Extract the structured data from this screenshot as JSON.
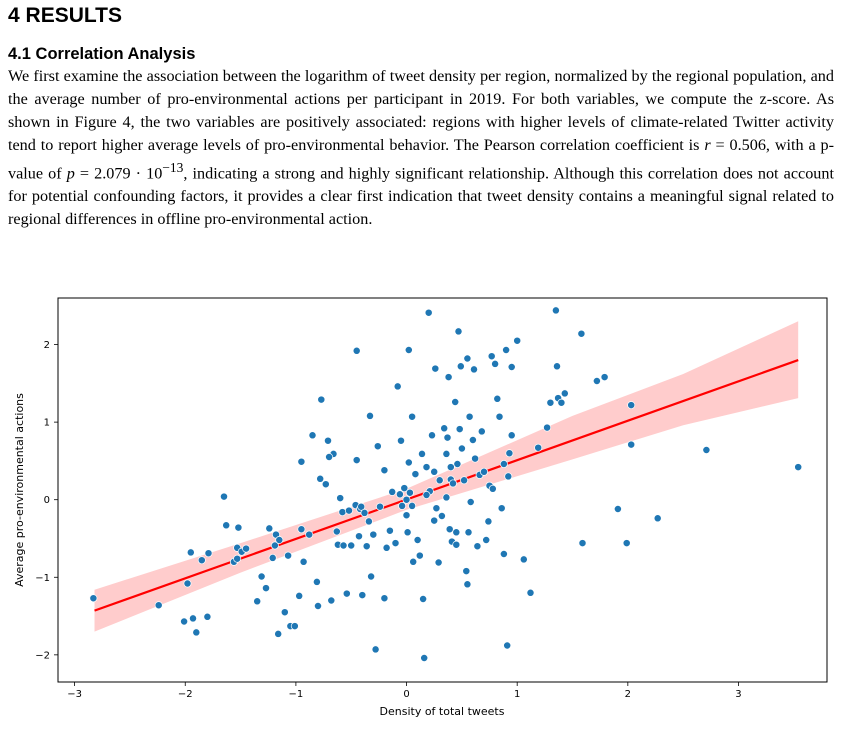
{
  "section": {
    "number": "4",
    "title": "RESULTS"
  },
  "subsection": {
    "number": "4.1",
    "title": "Correlation Analysis"
  },
  "paragraph": {
    "s1": "We first examine the association between the logarithm of tweet density per region, normalized by the regional population, and the average number of pro-environmental actions per participant in 2019. For both variables, we compute the z-score. As shown in Figure 4, the two variables are positively associated: regions with higher levels of climate-related Twitter activity tend to report higher average levels of pro-environmental behavior. The Pearson correlation coefficient is ",
    "r_symbol": "r",
    "r_eq": " = 0.506, with a p-value of ",
    "p_symbol": "p",
    "p_eq": " = 2.079 · 10",
    "p_exp": "−13",
    "s2": ", indicating a strong and highly significant relationship. Although this correlation does not account for potential confounding factors, it provides a clear first indication that tweet density contains a meaningful signal related to regional differences in offline pro-environmental action."
  },
  "chart_data": {
    "type": "scatter",
    "xlabel": "Density of total tweets",
    "ylabel": "Average pro-environmental actions",
    "xlim": [
      -3.15,
      3.8
    ],
    "ylim": [
      -2.35,
      2.6
    ],
    "xticks": [
      -3,
      -2,
      -1,
      0,
      1,
      2,
      3
    ],
    "yticks": [
      -2,
      -1,
      0,
      1,
      2
    ],
    "xtick_labels": [
      "−3",
      "−2",
      "−1",
      "0",
      "1",
      "2",
      "3"
    ],
    "ytick_labels": [
      "−2",
      "−1",
      "0",
      "1",
      "2"
    ],
    "grid": false,
    "colors": {
      "points": "#1f77b4",
      "point_edge": "#ffffff",
      "regression": "#ff0000",
      "band": "#ffcccc"
    },
    "regression": {
      "x": [
        -2.82,
        3.54
      ],
      "y": [
        -1.43,
        1.8
      ]
    },
    "confidence_band": {
      "x": [
        -2.82,
        -1.5,
        0,
        1.5,
        2.5,
        3.54
      ],
      "lower": [
        -1.7,
        -0.94,
        -0.13,
        0.52,
        0.96,
        1.31
      ],
      "upper": [
        -1.16,
        -0.56,
        0.14,
        1.08,
        1.62,
        2.3
      ]
    },
    "points": [
      [
        -2.83,
        -1.27
      ],
      [
        -2.24,
        -1.36
      ],
      [
        -2.01,
        -1.57
      ],
      [
        -1.98,
        -1.08
      ],
      [
        -1.95,
        -0.68
      ],
      [
        -1.93,
        -1.53
      ],
      [
        -1.9,
        -1.71
      ],
      [
        -1.85,
        -0.78
      ],
      [
        -1.8,
        -1.51
      ],
      [
        -1.79,
        -0.69
      ],
      [
        -1.65,
        0.04
      ],
      [
        -1.63,
        -0.33
      ],
      [
        -1.56,
        -0.8
      ],
      [
        -1.53,
        -0.76
      ],
      [
        -1.53,
        -0.62
      ],
      [
        -1.52,
        -0.36
      ],
      [
        -1.49,
        -0.67
      ],
      [
        -1.45,
        -0.63
      ],
      [
        -1.35,
        -1.31
      ],
      [
        -1.31,
        -0.99
      ],
      [
        -1.27,
        -1.14
      ],
      [
        -1.24,
        -0.37
      ],
      [
        -1.21,
        -0.75
      ],
      [
        -1.19,
        -0.59
      ],
      [
        -1.18,
        -0.45
      ],
      [
        -1.16,
        -1.73
      ],
      [
        -1.15,
        -0.52
      ],
      [
        -1.1,
        -1.45
      ],
      [
        -1.07,
        -0.72
      ],
      [
        -1.05,
        -1.63
      ],
      [
        -1.01,
        -1.63
      ],
      [
        -0.97,
        -1.24
      ],
      [
        -0.95,
        -0.38
      ],
      [
        -0.93,
        -0.8
      ],
      [
        -0.88,
        -0.45
      ],
      [
        -0.85,
        0.83
      ],
      [
        -0.81,
        -1.06
      ],
      [
        -0.78,
        0.27
      ],
      [
        -0.8,
        -1.37
      ],
      [
        -0.77,
        1.29
      ],
      [
        -0.73,
        0.2
      ],
      [
        -0.71,
        0.76
      ],
      [
        -0.68,
        -1.3
      ],
      [
        -0.66,
        0.59
      ],
      [
        -0.63,
        -0.41
      ],
      [
        -0.62,
        -0.58
      ],
      [
        -0.6,
        0.02
      ],
      [
        -0.58,
        -0.16
      ],
      [
        -0.57,
        -0.59
      ],
      [
        -0.54,
        -1.21
      ],
      [
        -0.52,
        -0.14
      ],
      [
        -0.5,
        -0.59
      ],
      [
        -0.46,
        -0.07
      ],
      [
        -0.43,
        -0.47
      ],
      [
        -0.42,
        -0.12
      ],
      [
        -0.41,
        -0.09
      ],
      [
        -0.4,
        -1.23
      ],
      [
        -0.38,
        -0.17
      ],
      [
        -0.36,
        -0.6
      ],
      [
        -0.34,
        -0.28
      ],
      [
        -0.33,
        1.08
      ],
      [
        -0.32,
        -0.99
      ],
      [
        -0.3,
        -0.45
      ],
      [
        -0.28,
        -1.93
      ],
      [
        -0.26,
        0.69
      ],
      [
        -0.24,
        -0.09
      ],
      [
        -0.2,
        -1.27
      ],
      [
        -0.18,
        -0.62
      ],
      [
        -0.15,
        -0.4
      ],
      [
        -0.13,
        0.1
      ],
      [
        -0.1,
        -0.56
      ],
      [
        -0.08,
        1.46
      ],
      [
        -0.05,
        0.76
      ],
      [
        -0.04,
        -0.08
      ],
      [
        -0.02,
        0.15
      ],
      [
        0.0,
        -0.2
      ],
      [
        0.01,
        -0.42
      ],
      [
        0.02,
        0.48
      ],
      [
        0.03,
        0.09
      ],
      [
        0.05,
        1.07
      ],
      [
        0.06,
        -0.8
      ],
      [
        0.08,
        0.33
      ],
      [
        0.1,
        -0.52
      ],
      [
        0.12,
        -0.72
      ],
      [
        0.14,
        0.59
      ],
      [
        0.15,
        -1.28
      ],
      [
        0.16,
        -2.04
      ],
      [
        0.18,
        0.42
      ],
      [
        0.2,
        2.41
      ],
      [
        0.21,
        0.11
      ],
      [
        0.23,
        0.83
      ],
      [
        0.25,
        -0.27
      ],
      [
        0.26,
        1.69
      ],
      [
        0.27,
        -0.11
      ],
      [
        0.29,
        -0.81
      ],
      [
        0.3,
        0.25
      ],
      [
        0.32,
        -0.21
      ],
      [
        0.34,
        0.92
      ],
      [
        0.36,
        0.59
      ],
      [
        0.37,
        0.8
      ],
      [
        0.38,
        1.58
      ],
      [
        0.39,
        -0.38
      ],
      [
        0.4,
        0.26
      ],
      [
        0.41,
        -0.54
      ],
      [
        0.42,
        0.21
      ],
      [
        0.44,
        1.26
      ],
      [
        0.45,
        -0.42
      ],
      [
        0.46,
        0.46
      ],
      [
        0.48,
        0.91
      ],
      [
        0.49,
        1.72
      ],
      [
        0.5,
        0.66
      ],
      [
        0.52,
        0.25
      ],
      [
        0.54,
        -0.92
      ],
      [
        0.55,
        -1.09
      ],
      [
        0.56,
        -0.42
      ],
      [
        0.57,
        1.07
      ],
      [
        0.58,
        -0.03
      ],
      [
        0.6,
        0.77
      ],
      [
        0.61,
        1.68
      ],
      [
        0.62,
        0.53
      ],
      [
        0.64,
        -0.6
      ],
      [
        0.66,
        0.32
      ],
      [
        0.68,
        0.88
      ],
      [
        0.7,
        0.36
      ],
      [
        0.72,
        -0.52
      ],
      [
        0.74,
        -0.28
      ],
      [
        0.75,
        0.18
      ],
      [
        0.77,
        1.85
      ],
      [
        0.78,
        0.14
      ],
      [
        0.8,
        1.75
      ],
      [
        0.82,
        1.3
      ],
      [
        0.84,
        1.07
      ],
      [
        0.86,
        -0.11
      ],
      [
        0.88,
        0.46
      ],
      [
        0.9,
        1.93
      ],
      [
        0.91,
        -1.88
      ],
      [
        0.92,
        0.3
      ],
      [
        0.93,
        0.6
      ],
      [
        0.95,
        0.83
      ],
      [
        1.0,
        2.05
      ],
      [
        1.06,
        -0.77
      ],
      [
        1.12,
        -1.2
      ],
      [
        1.19,
        0.67
      ],
      [
        1.27,
        0.93
      ],
      [
        1.3,
        1.25
      ],
      [
        1.35,
        2.44
      ],
      [
        1.36,
        1.72
      ],
      [
        1.37,
        1.31
      ],
      [
        1.4,
        1.25
      ],
      [
        1.43,
        1.37
      ],
      [
        1.59,
        -0.56
      ],
      [
        1.58,
        2.14
      ],
      [
        1.72,
        1.53
      ],
      [
        1.79,
        1.58
      ],
      [
        1.91,
        -0.12
      ],
      [
        1.99,
        -0.56
      ],
      [
        2.03,
        1.22
      ],
      [
        2.03,
        0.71
      ],
      [
        2.27,
        -0.24
      ],
      [
        2.71,
        0.64
      ],
      [
        3.54,
        0.42
      ],
      [
        -0.95,
        0.49
      ],
      [
        -0.45,
        0.51
      ],
      [
        -0.2,
        0.38
      ],
      [
        0.0,
        0.0
      ],
      [
        0.05,
        -0.08
      ],
      [
        -0.06,
        0.07
      ],
      [
        0.18,
        0.06
      ],
      [
        0.25,
        0.36
      ],
      [
        0.36,
        0.03
      ],
      [
        0.4,
        0.42
      ],
      [
        -0.7,
        0.55
      ],
      [
        -0.45,
        1.92
      ],
      [
        0.02,
        1.93
      ],
      [
        0.47,
        2.17
      ],
      [
        0.55,
        1.82
      ],
      [
        0.95,
        1.71
      ],
      [
        0.45,
        -0.58
      ],
      [
        0.88,
        -0.7
      ]
    ]
  }
}
